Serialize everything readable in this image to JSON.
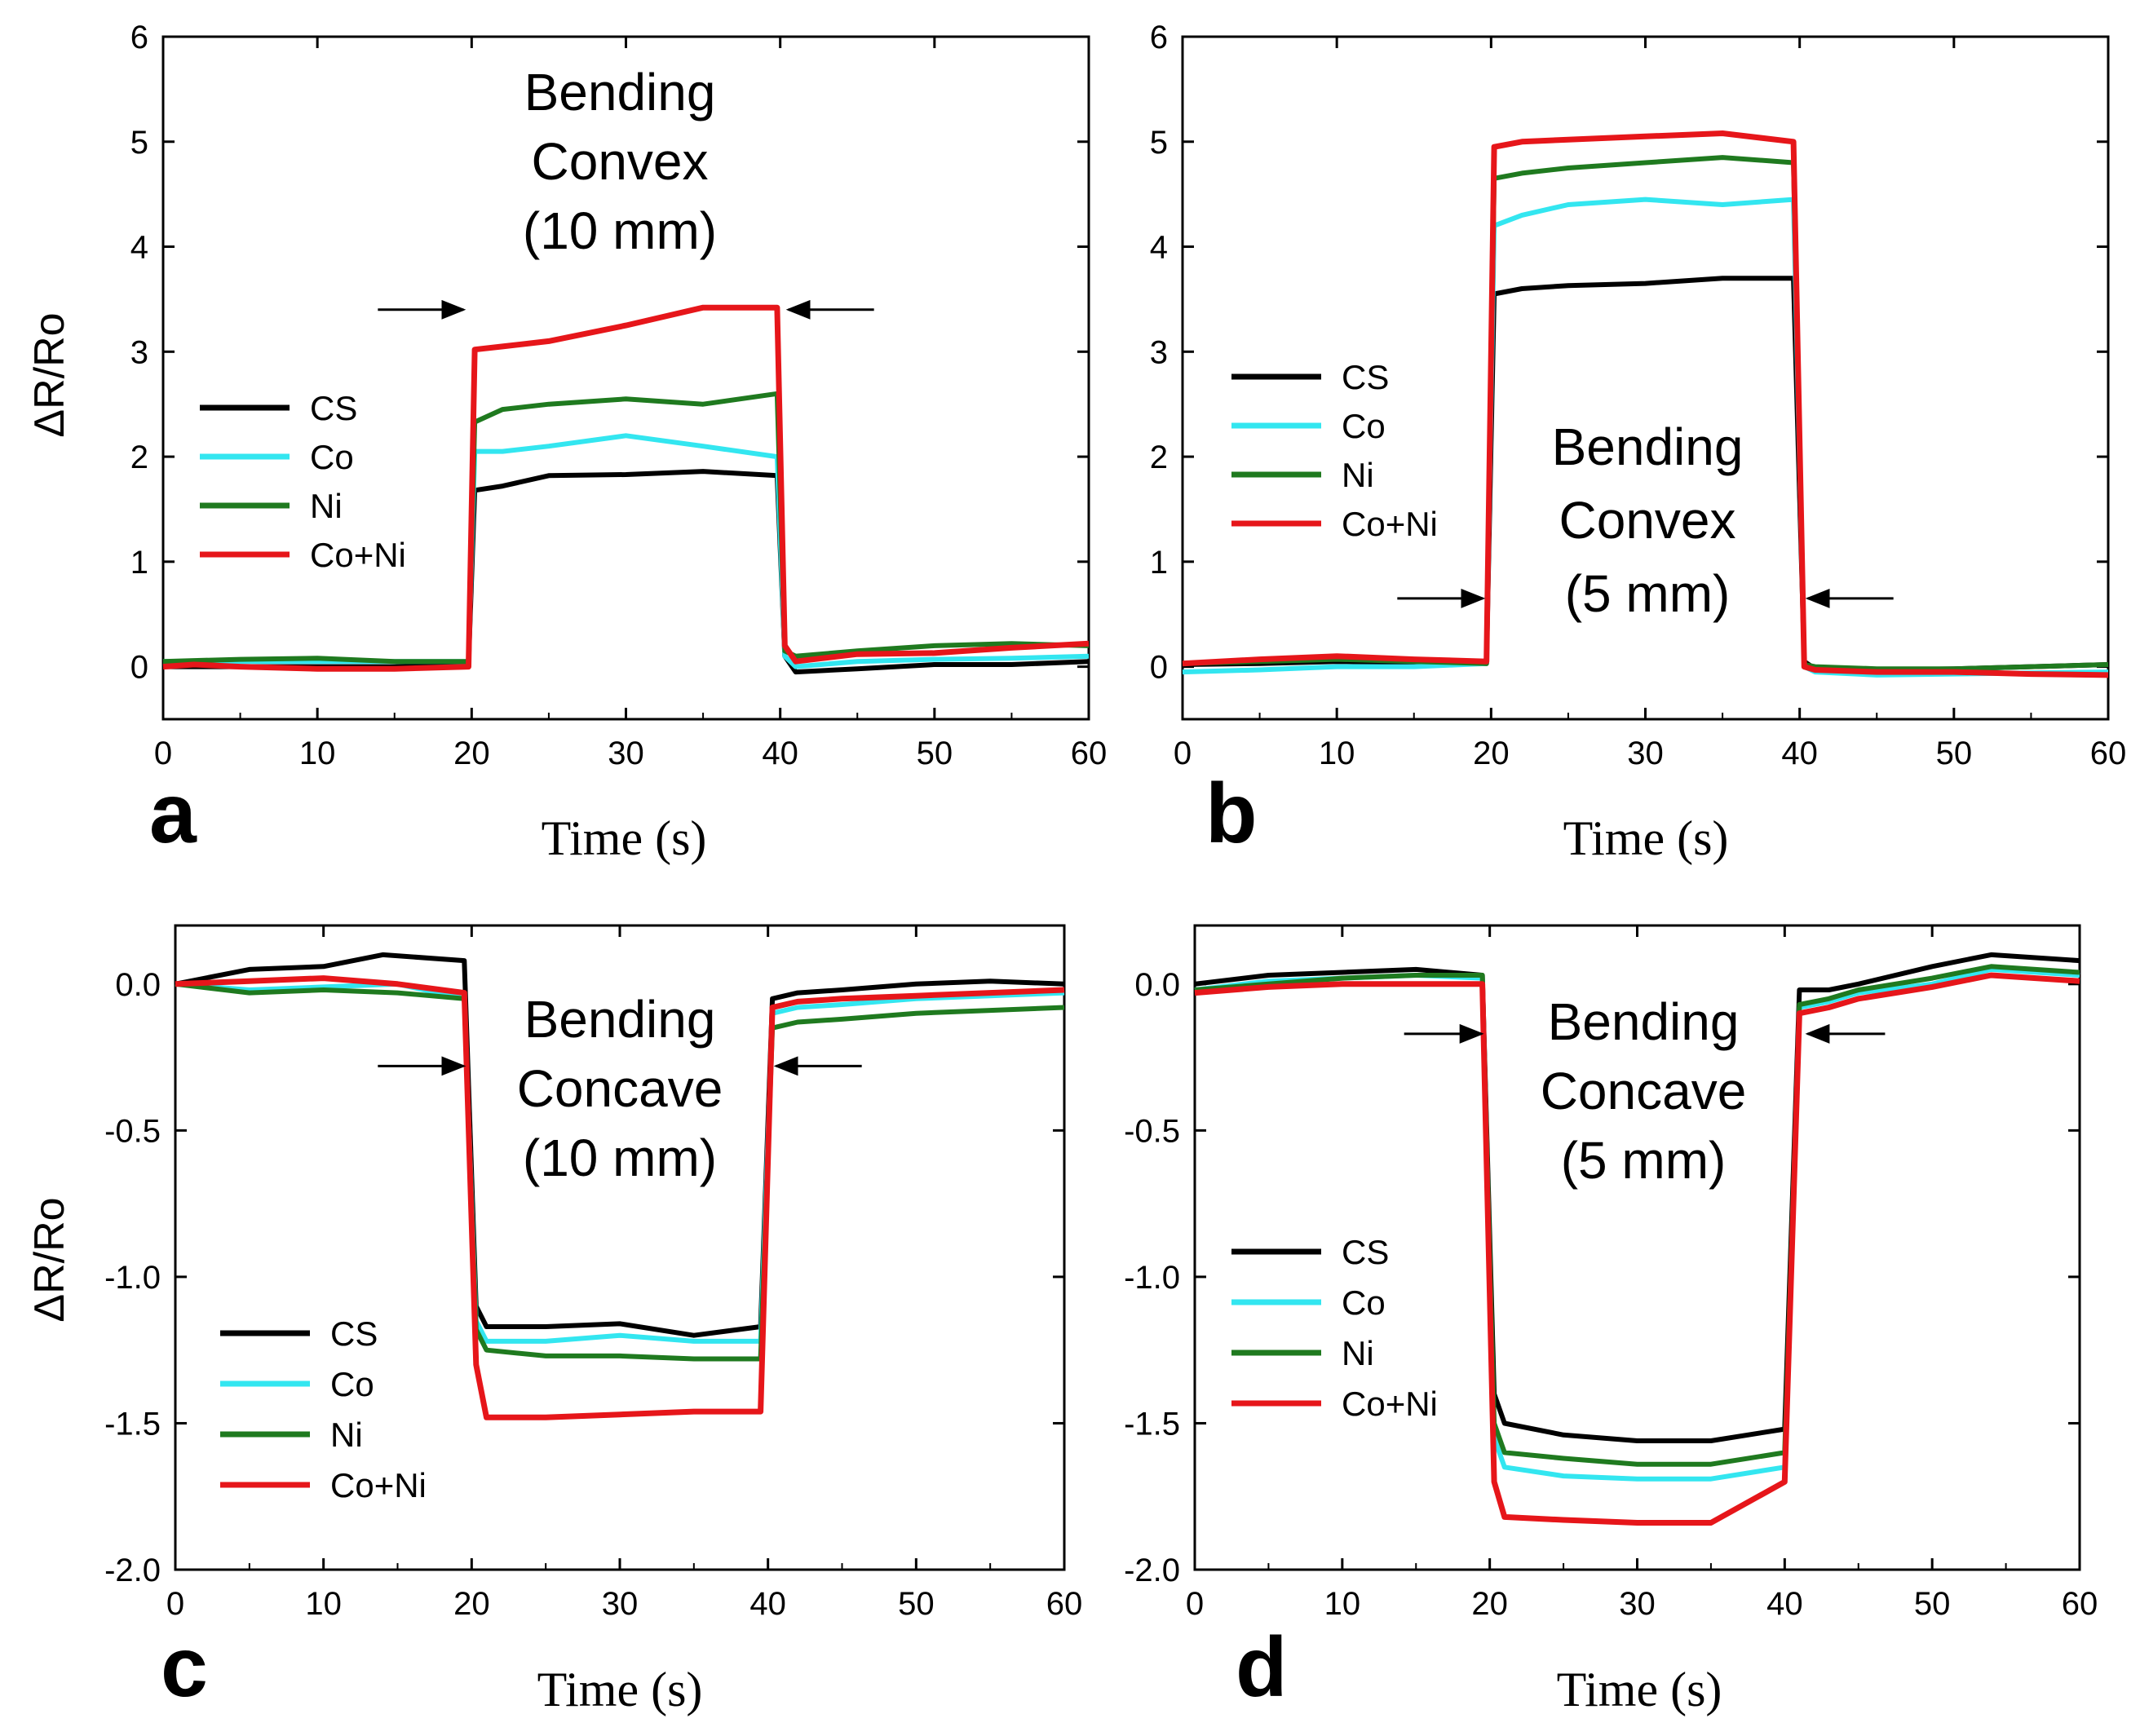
{
  "colors": {
    "CS": "#000000",
    "Co": "#33e6f0",
    "Ni": "#1f7a1f",
    "Co+Ni": "#e6161a"
  },
  "chart_data": [
    {
      "type": "line",
      "panel": "a",
      "xlabel": "Time (s)",
      "ylabel": "ΔR/Ro",
      "xlim": [
        0,
        60
      ],
      "ylim": [
        -0.5,
        6
      ],
      "xticks": [
        "0",
        "10",
        "20",
        "30",
        "40",
        "50",
        "60"
      ],
      "yticks": [
        "0",
        "1",
        "2",
        "3",
        "4",
        "5",
        "6"
      ],
      "annotation": [
        "Bending",
        "Convex",
        "(10 mm)"
      ],
      "legend": [
        "CS",
        "Co",
        "Ni",
        "Co+Ni"
      ],
      "series": [
        {
          "name": "CS",
          "x": [
            0,
            5,
            10,
            15,
            19.8,
            20.2,
            22,
            25,
            30,
            35,
            39.8,
            40.3,
            41,
            45,
            50,
            55,
            60
          ],
          "y": [
            0,
            0,
            0,
            0,
            0.03,
            1.68,
            1.72,
            1.82,
            1.83,
            1.86,
            1.82,
            0.1,
            -0.05,
            -0.02,
            0.02,
            0.02,
            0.05
          ]
        },
        {
          "name": "Co",
          "x": [
            0,
            5,
            10,
            15,
            19.8,
            20.2,
            22,
            25,
            30,
            35,
            39.8,
            40.3,
            41,
            45,
            50,
            55,
            60
          ],
          "y": [
            0.05,
            0.05,
            0.05,
            0.05,
            0.05,
            2.05,
            2.05,
            2.1,
            2.2,
            2.1,
            2.0,
            0.1,
            0.0,
            0.05,
            0.07,
            0.08,
            0.1
          ]
        },
        {
          "name": "Ni",
          "x": [
            0,
            5,
            10,
            15,
            19.8,
            20.2,
            22,
            25,
            30,
            35,
            39.8,
            40.3,
            41,
            45,
            50,
            55,
            60
          ],
          "y": [
            0.05,
            0.07,
            0.08,
            0.05,
            0.05,
            2.33,
            2.45,
            2.5,
            2.55,
            2.5,
            2.6,
            0.15,
            0.1,
            0.15,
            0.2,
            0.22,
            0.2
          ]
        },
        {
          "name": "Co+Ni",
          "x": [
            0,
            2,
            5,
            10,
            15,
            19.8,
            20.2,
            22,
            25,
            30,
            35,
            39.8,
            40.3,
            41,
            45,
            50,
            55,
            60
          ],
          "y": [
            0,
            0.02,
            0,
            -0.02,
            -0.02,
            0.0,
            3.02,
            3.05,
            3.1,
            3.25,
            3.42,
            3.42,
            0.2,
            0.05,
            0.12,
            0.13,
            0.18,
            0.22
          ]
        }
      ],
      "arrow_x": [
        20,
        40
      ],
      "arrow_y": 3.4
    },
    {
      "type": "line",
      "panel": "b",
      "xlabel": "Time (s)",
      "ylabel": "",
      "xlim": [
        0,
        60
      ],
      "ylim": [
        -0.5,
        6
      ],
      "xticks": [
        "0",
        "10",
        "20",
        "30",
        "40",
        "50",
        "60"
      ],
      "yticks": [
        "0",
        "1",
        "2",
        "3",
        "4",
        "5",
        "6"
      ],
      "annotation": [
        "Bending",
        "Convex",
        "(5 mm)"
      ],
      "legend": [
        "CS",
        "Co",
        "Ni",
        "Co+Ni"
      ],
      "series": [
        {
          "name": "CS",
          "x": [
            0,
            5,
            10,
            15,
            19.7,
            20.2,
            22,
            25,
            30,
            35,
            39.6,
            40.3,
            41,
            45,
            50,
            55,
            60
          ],
          "y": [
            0.02,
            0.03,
            0.05,
            0.04,
            0.03,
            3.55,
            3.6,
            3.63,
            3.65,
            3.7,
            3.7,
            0.05,
            -0.02,
            -0.03,
            -0.02,
            0.0,
            0.02
          ]
        },
        {
          "name": "Co",
          "x": [
            0,
            5,
            10,
            15,
            19.7,
            20.2,
            22,
            25,
            30,
            35,
            39.6,
            40.3,
            41,
            45,
            50,
            55,
            60
          ],
          "y": [
            -0.05,
            -0.03,
            0.0,
            0.0,
            0.03,
            4.2,
            4.3,
            4.4,
            4.45,
            4.4,
            4.45,
            0.0,
            -0.05,
            -0.08,
            -0.07,
            -0.06,
            -0.05
          ]
        },
        {
          "name": "Ni",
          "x": [
            0,
            5,
            10,
            15,
            19.7,
            20.2,
            22,
            25,
            30,
            35,
            39.6,
            40.3,
            41,
            45,
            50,
            55,
            60
          ],
          "y": [
            0.03,
            0.05,
            0.07,
            0.05,
            0.03,
            4.65,
            4.7,
            4.75,
            4.8,
            4.85,
            4.8,
            0.02,
            0.0,
            -0.02,
            -0.02,
            0.0,
            0.02
          ]
        },
        {
          "name": "Co+Ni",
          "x": [
            0,
            5,
            10,
            15,
            19.7,
            20.2,
            22,
            25,
            30,
            35,
            39.6,
            40.3,
            41,
            45,
            50,
            55,
            60
          ],
          "y": [
            0.03,
            0.07,
            0.1,
            0.07,
            0.05,
            4.95,
            5.0,
            5.02,
            5.05,
            5.08,
            5.0,
            0.0,
            -0.03,
            -0.05,
            -0.05,
            -0.07,
            -0.08
          ]
        }
      ],
      "arrow_x": [
        20,
        40
      ],
      "arrow_y": 0.65
    },
    {
      "type": "line",
      "panel": "c",
      "xlabel": "Time (s)",
      "ylabel": "ΔR/Ro",
      "xlim": [
        0,
        60
      ],
      "ylim": [
        -2,
        0.2
      ],
      "xticks": [
        "0",
        "10",
        "20",
        "30",
        "40",
        "50",
        "60"
      ],
      "yticks": [
        "0.0",
        "-0.5",
        "-1.0",
        "-1.5",
        "-2.0"
      ],
      "annotation": [
        "Bending",
        "Concave",
        "(10 mm)"
      ],
      "legend": [
        "CS",
        "Co",
        "Ni",
        "Co+Ni"
      ],
      "series": [
        {
          "name": "CS",
          "x": [
            0,
            5,
            10,
            14,
            19.5,
            20.3,
            21,
            25,
            30,
            35,
            39.5,
            40.3,
            42,
            45,
            50,
            55,
            60
          ],
          "y": [
            0,
            0.05,
            0.06,
            0.1,
            0.08,
            -1.1,
            -1.17,
            -1.17,
            -1.16,
            -1.2,
            -1.17,
            -0.05,
            -0.03,
            -0.02,
            0,
            0.01,
            0
          ]
        },
        {
          "name": "Co",
          "x": [
            0,
            5,
            10,
            15,
            19.5,
            20.3,
            21,
            25,
            30,
            35,
            39.5,
            40.3,
            42,
            45,
            50,
            55,
            60
          ],
          "y": [
            0,
            -0.02,
            -0.01,
            0.0,
            -0.05,
            -1.15,
            -1.22,
            -1.22,
            -1.2,
            -1.22,
            -1.22,
            -0.1,
            -0.08,
            -0.07,
            -0.05,
            -0.04,
            -0.03
          ]
        },
        {
          "name": "Ni",
          "x": [
            0,
            5,
            10,
            15,
            19.5,
            20.3,
            21,
            25,
            30,
            35,
            39.5,
            40.3,
            42,
            45,
            50,
            55,
            60
          ],
          "y": [
            0,
            -0.03,
            -0.02,
            -0.03,
            -0.05,
            -1.18,
            -1.25,
            -1.27,
            -1.27,
            -1.28,
            -1.28,
            -0.15,
            -0.13,
            -0.12,
            -0.1,
            -0.09,
            -0.08
          ]
        },
        {
          "name": "Co+Ni",
          "x": [
            0,
            5,
            10,
            15,
            19.5,
            20.3,
            21,
            25,
            30,
            35,
            39.5,
            40.3,
            42,
            45,
            50,
            55,
            60
          ],
          "y": [
            0,
            0.01,
            0.02,
            0.0,
            -0.03,
            -1.3,
            -1.48,
            -1.48,
            -1.47,
            -1.46,
            -1.46,
            -0.08,
            -0.06,
            -0.05,
            -0.04,
            -0.03,
            -0.02
          ]
        }
      ],
      "arrow_x": [
        20,
        40
      ],
      "arrow_y": -0.28
    },
    {
      "type": "line",
      "panel": "d",
      "xlabel": "Time (s)",
      "ylabel": "",
      "xlim": [
        0,
        60
      ],
      "ylim": [
        -2,
        0.2
      ],
      "xticks": [
        "0",
        "10",
        "20",
        "30",
        "40",
        "50",
        "60"
      ],
      "yticks": [
        "0.0",
        "-0.5",
        "-1.0",
        "-1.5",
        "-2.0"
      ],
      "annotation": [
        "Bending",
        "Concave",
        "(5 mm)"
      ],
      "legend": [
        "CS",
        "Co",
        "Ni",
        "Co+Ni"
      ],
      "series": [
        {
          "name": "CS",
          "x": [
            0,
            5,
            10,
            15,
            19.5,
            20.3,
            21,
            25,
            30,
            35,
            40,
            41,
            43,
            45,
            50,
            54,
            60
          ],
          "y": [
            0,
            0.03,
            0.04,
            0.05,
            0.03,
            -1.4,
            -1.5,
            -1.54,
            -1.56,
            -1.56,
            -1.52,
            -0.02,
            -0.02,
            0.0,
            0.06,
            0.1,
            0.08
          ]
        },
        {
          "name": "Co",
          "x": [
            0,
            5,
            10,
            15,
            19.5,
            20.3,
            21,
            25,
            30,
            35,
            40,
            41,
            43,
            45,
            50,
            54,
            60
          ],
          "y": [
            -0.02,
            0.01,
            0.02,
            0.03,
            0.02,
            -1.55,
            -1.65,
            -1.68,
            -1.69,
            -1.69,
            -1.65,
            -0.08,
            -0.06,
            -0.03,
            0.0,
            0.05,
            0.03
          ]
        },
        {
          "name": "Ni",
          "x": [
            0,
            5,
            10,
            15,
            19.5,
            20.3,
            21,
            25,
            30,
            35,
            40,
            41,
            43,
            45,
            50,
            54,
            60
          ],
          "y": [
            -0.02,
            0.0,
            0.02,
            0.03,
            0.03,
            -1.5,
            -1.6,
            -1.62,
            -1.64,
            -1.64,
            -1.6,
            -0.07,
            -0.05,
            -0.02,
            0.02,
            0.06,
            0.04
          ]
        },
        {
          "name": "Co+Ni",
          "x": [
            0,
            5,
            10,
            15,
            19.5,
            20.3,
            21,
            25,
            30,
            35,
            40,
            41,
            43,
            45,
            50,
            54,
            60
          ],
          "y": [
            -0.03,
            -0.01,
            0.0,
            0.0,
            0.0,
            -1.7,
            -1.82,
            -1.83,
            -1.84,
            -1.84,
            -1.7,
            -0.1,
            -0.08,
            -0.05,
            -0.01,
            0.03,
            0.01
          ]
        }
      ],
      "arrow_x": [
        20,
        41
      ],
      "arrow_y": -0.17
    }
  ]
}
